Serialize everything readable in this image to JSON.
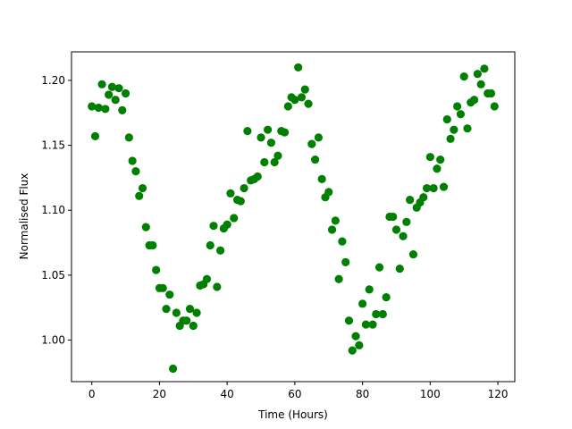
{
  "chart_data": {
    "type": "scatter",
    "title": "",
    "xlabel": "Time (Hours)",
    "ylabel": "Normalised Flux",
    "xlim": [
      -6,
      125
    ],
    "ylim": [
      0.968,
      1.222
    ],
    "xticks": [
      0,
      20,
      40,
      60,
      80,
      100,
      120
    ],
    "xtick_labels": [
      "0",
      "20",
      "40",
      "60",
      "80",
      "100",
      "120"
    ],
    "yticks": [
      1.0,
      1.05,
      1.1,
      1.15,
      1.2
    ],
    "ytick_labels": [
      "1.00",
      "1.05",
      "1.10",
      "1.15",
      "1.20"
    ],
    "grid": false,
    "legend": "none",
    "marker_color": "#008000",
    "x": [
      0,
      1,
      2,
      3,
      4,
      5,
      6,
      7,
      8,
      9,
      10,
      11,
      12,
      13,
      14,
      15,
      16,
      17,
      18,
      19,
      20,
      21,
      22,
      23,
      24,
      25,
      26,
      27,
      28,
      29,
      30,
      31,
      32,
      33,
      34,
      35,
      36,
      37,
      38,
      39,
      40,
      41,
      42,
      43,
      44,
      45,
      46,
      47,
      48,
      49,
      50,
      51,
      52,
      53,
      54,
      55,
      56,
      57,
      58,
      59,
      60,
      61,
      62,
      63,
      64,
      65,
      66,
      67,
      68,
      69,
      70,
      71,
      72,
      73,
      74,
      75,
      76,
      77,
      78,
      79,
      80,
      81,
      82,
      83,
      84,
      85,
      86,
      87,
      88,
      89,
      90,
      91,
      92,
      93,
      94,
      95,
      96,
      97,
      98,
      99,
      100,
      101,
      102,
      103,
      104,
      105,
      106,
      107,
      108,
      109,
      110,
      111,
      112,
      113,
      114,
      115,
      116,
      117,
      118,
      119
    ],
    "y": [
      1.18,
      1.157,
      1.179,
      1.197,
      1.178,
      1.189,
      1.195,
      1.185,
      1.194,
      1.177,
      1.19,
      1.156,
      1.138,
      1.13,
      1.111,
      1.117,
      1.087,
      1.073,
      1.073,
      1.054,
      1.04,
      1.04,
      1.024,
      1.035,
      0.978,
      1.021,
      1.011,
      1.015,
      1.015,
      1.024,
      1.011,
      1.021,
      1.042,
      1.043,
      1.047,
      1.073,
      1.088,
      1.041,
      1.069,
      1.086,
      1.089,
      1.113,
      1.094,
      1.108,
      1.107,
      1.117,
      1.161,
      1.123,
      1.124,
      1.126,
      1.156,
      1.137,
      1.162,
      1.152,
      1.137,
      1.142,
      1.161,
      1.16,
      1.18,
      1.187,
      1.185,
      1.21,
      1.187,
      1.193,
      1.182,
      1.151,
      1.139,
      1.156,
      1.124,
      1.11,
      1.114,
      1.085,
      1.092,
      1.047,
      1.076,
      1.06,
      1.015,
      0.992,
      1.003,
      0.996,
      1.028,
      1.012,
      1.039,
      1.012,
      1.02,
      1.056,
      1.02,
      1.033,
      1.095,
      1.095,
      1.085,
      1.055,
      1.08,
      1.091,
      1.108,
      1.066,
      1.102,
      1.106,
      1.11,
      1.117,
      1.141,
      1.117,
      1.132,
      1.139,
      1.118,
      1.17,
      1.155,
      1.162,
      1.18,
      1.174,
      1.203,
      1.163,
      1.183,
      1.185,
      1.205,
      1.197,
      1.209,
      1.19,
      1.19,
      1.18
    ]
  }
}
